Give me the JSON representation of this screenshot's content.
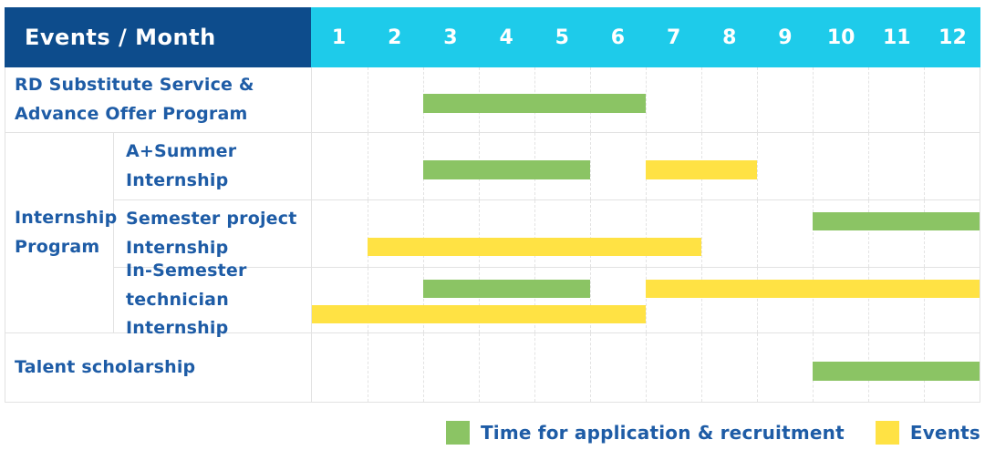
{
  "header": {
    "label": "Events / Month",
    "months": [
      "1",
      "2",
      "3",
      "4",
      "5",
      "6",
      "7",
      "8",
      "9",
      "10",
      "11",
      "12"
    ]
  },
  "colors": {
    "header_bg": "#0d4c8c",
    "month_header_bg": "#1ecbea",
    "label_text": "#1e5ca6",
    "grid_line": "#e3e3e3",
    "green": "#8bc464",
    "yellow": "#ffe244"
  },
  "labels": {
    "rd_substitute": "RD Substitute Service &\nAdvance Offer Program",
    "internship_group": "Internship\nProgram",
    "a_plus_summer": "A+Summer\nInternship",
    "semester_project": "Semester project\nInternship",
    "in_semester": "In-Semester\ntechnician Internship",
    "talent_scholarship": "Talent scholarship"
  },
  "chart_data": {
    "type": "bar",
    "subtype": "gantt",
    "title": "Events / Month",
    "x_axis": {
      "label": "Month",
      "ticks": [
        "1",
        "2",
        "3",
        "4",
        "5",
        "6",
        "7",
        "8",
        "9",
        "10",
        "11",
        "12"
      ],
      "range": [
        1,
        12
      ],
      "grid": true
    },
    "legend_position": "bottom-right",
    "legend": [
      {
        "label": "Time for application & recruitment",
        "color": "#8bc464"
      },
      {
        "label": "Events",
        "color": "#ffe244"
      }
    ],
    "rows": [
      {
        "group": null,
        "label": "RD Substitute Service & Advance Offer Program",
        "bars": [
          {
            "series": "Time for application & recruitment",
            "start_month": 3,
            "end_month": 6,
            "lane": "center"
          }
        ]
      },
      {
        "group": "Internship Program",
        "label": "A+Summer Internship",
        "bars": [
          {
            "series": "Time for application & recruitment",
            "start_month": 3,
            "end_month": 5,
            "lane": "center"
          },
          {
            "series": "Events",
            "start_month": 7,
            "end_month": 8,
            "lane": "center"
          }
        ]
      },
      {
        "group": "Internship Program",
        "label": "Semester project Internship",
        "bars": [
          {
            "series": "Time for application & recruitment",
            "start_month": 10,
            "end_month": 12,
            "lane": "top"
          },
          {
            "series": "Events",
            "start_month": 2,
            "end_month": 7,
            "lane": "bottom"
          }
        ]
      },
      {
        "group": "Internship Program",
        "label": "In-Semester technician Internship",
        "bars": [
          {
            "series": "Time for application & recruitment",
            "start_month": 3,
            "end_month": 5,
            "lane": "top"
          },
          {
            "series": "Events",
            "start_month": 7,
            "end_month": 12,
            "lane": "top"
          },
          {
            "series": "Events",
            "start_month": 1,
            "end_month": 6,
            "lane": "bottom"
          }
        ]
      },
      {
        "group": null,
        "label": "Talent scholarship",
        "bars": [
          {
            "series": "Time for application & recruitment",
            "start_month": 10,
            "end_month": 12,
            "lane": "center"
          }
        ]
      }
    ]
  }
}
